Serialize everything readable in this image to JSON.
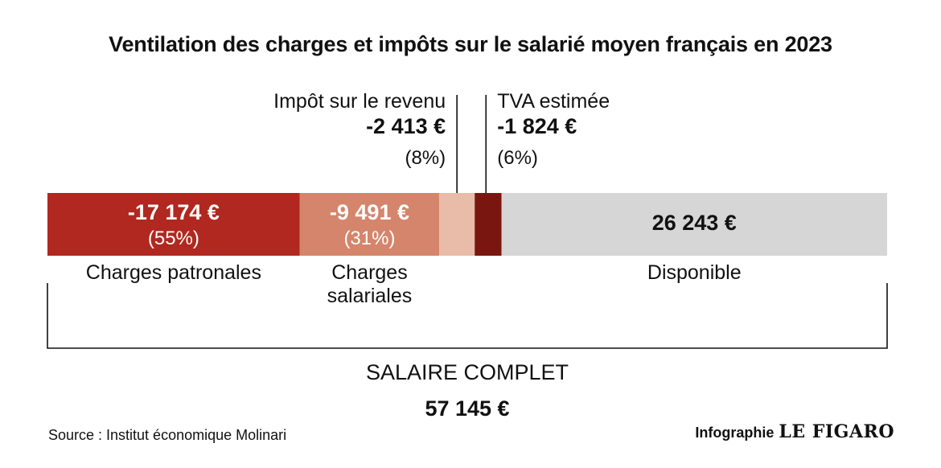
{
  "title": "Ventilation des charges et impôts sur le salarié moyen français en 2023",
  "source": "Source : Institut économique Molinari",
  "credit": {
    "text": "Infographie",
    "logo": "LE FIGARO"
  },
  "chart_data": {
    "type": "bar",
    "orientation": "horizontal-stacked",
    "total": {
      "label": "SALAIRE COMPLET",
      "value_label": "57 145 €",
      "value": 57145
    },
    "segments": [
      {
        "key": "patronales",
        "value": 17174,
        "value_label": "-17 174 €",
        "pct_label": "(55%)",
        "color": "#b0281f",
        "text_color": "#ffffff"
      },
      {
        "key": "salariales",
        "value": 9491,
        "value_label": "-9 491 €",
        "pct_label": "(31%)",
        "color": "#d4856b",
        "text_color": "#ffffff"
      },
      {
        "key": "ir",
        "value": 2413,
        "color": "#e9bba9"
      },
      {
        "key": "tva",
        "value": 1824,
        "color": "#7a1610"
      },
      {
        "key": "disponible",
        "value": 26243,
        "value_label": "26 243 €",
        "color": "#d6d6d6",
        "text_color": "#111111"
      }
    ],
    "bottom_labels": [
      {
        "segment": "patronales",
        "lines": [
          "Charges patronales"
        ]
      },
      {
        "segment": "salariales",
        "lines": [
          "Charges",
          "salariales"
        ]
      },
      {
        "segment": "disponible",
        "lines": [
          "Disponible"
        ]
      }
    ],
    "callouts": [
      {
        "segment": "ir",
        "side": "left",
        "label": "Impôt sur le revenu",
        "value_label": "-2 413 €",
        "pct_label": "(8%)"
      },
      {
        "segment": "tva",
        "side": "right",
        "label": "TVA estimée",
        "value_label": "-1 824 €",
        "pct_label": "(6%)"
      }
    ]
  }
}
